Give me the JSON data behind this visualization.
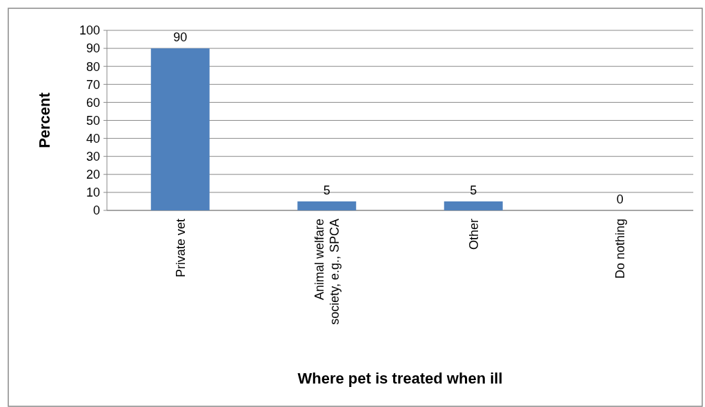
{
  "chart_data": {
    "type": "bar",
    "xlabel": "Where pet is treated when ill",
    "ylabel": "Percent",
    "categories": [
      "Private vet",
      "Animal welfare\nsociety, e.g., SPCA",
      "Other",
      "Do nothing"
    ],
    "values": [
      90,
      5,
      5,
      0
    ],
    "color": "#4f81bd",
    "ylim": [
      0,
      100
    ],
    "yticks": [
      0,
      10,
      20,
      30,
      40,
      50,
      60,
      70,
      80,
      90,
      100
    ],
    "grid": "y",
    "data_labels": true
  }
}
